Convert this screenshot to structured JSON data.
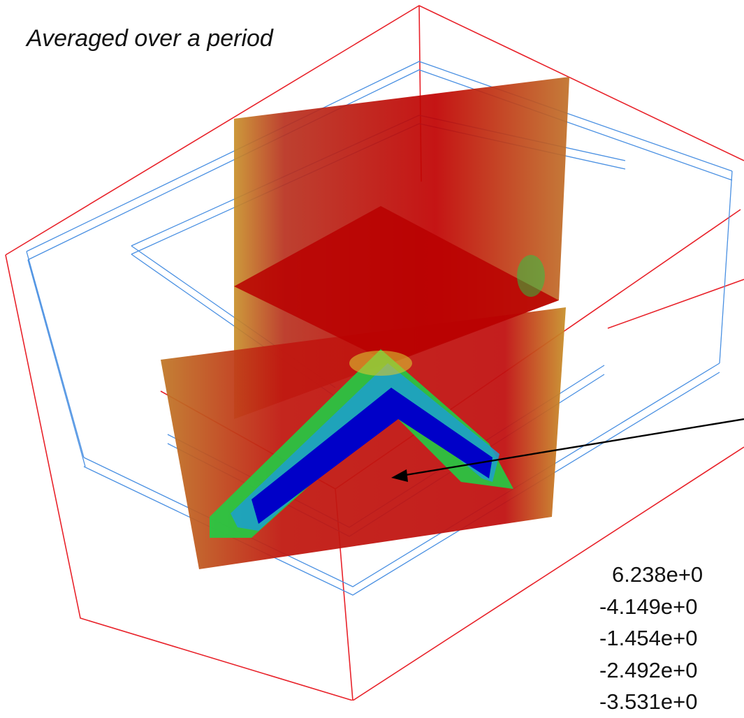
{
  "caption": "Averaged over a period",
  "legend": {
    "values": [
      "6.238e+0",
      "-4.149e+0",
      "-1.454e+0",
      "-2.492e+0",
      "-3.531e+0"
    ]
  },
  "colors": {
    "outer_box": "#e8222a",
    "inner_frames": "#4a90e2",
    "field_high": "#c00000",
    "field_mid": "#ccaa22",
    "field_low_green": "#22cc44",
    "field_min": "#0000c8",
    "arrow": "#000000"
  },
  "visualization": {
    "kind": "3D field slice planes inside wireframe box",
    "planes": [
      "vertical-plane-a",
      "vertical-plane-b",
      "horizontal-plane"
    ]
  }
}
